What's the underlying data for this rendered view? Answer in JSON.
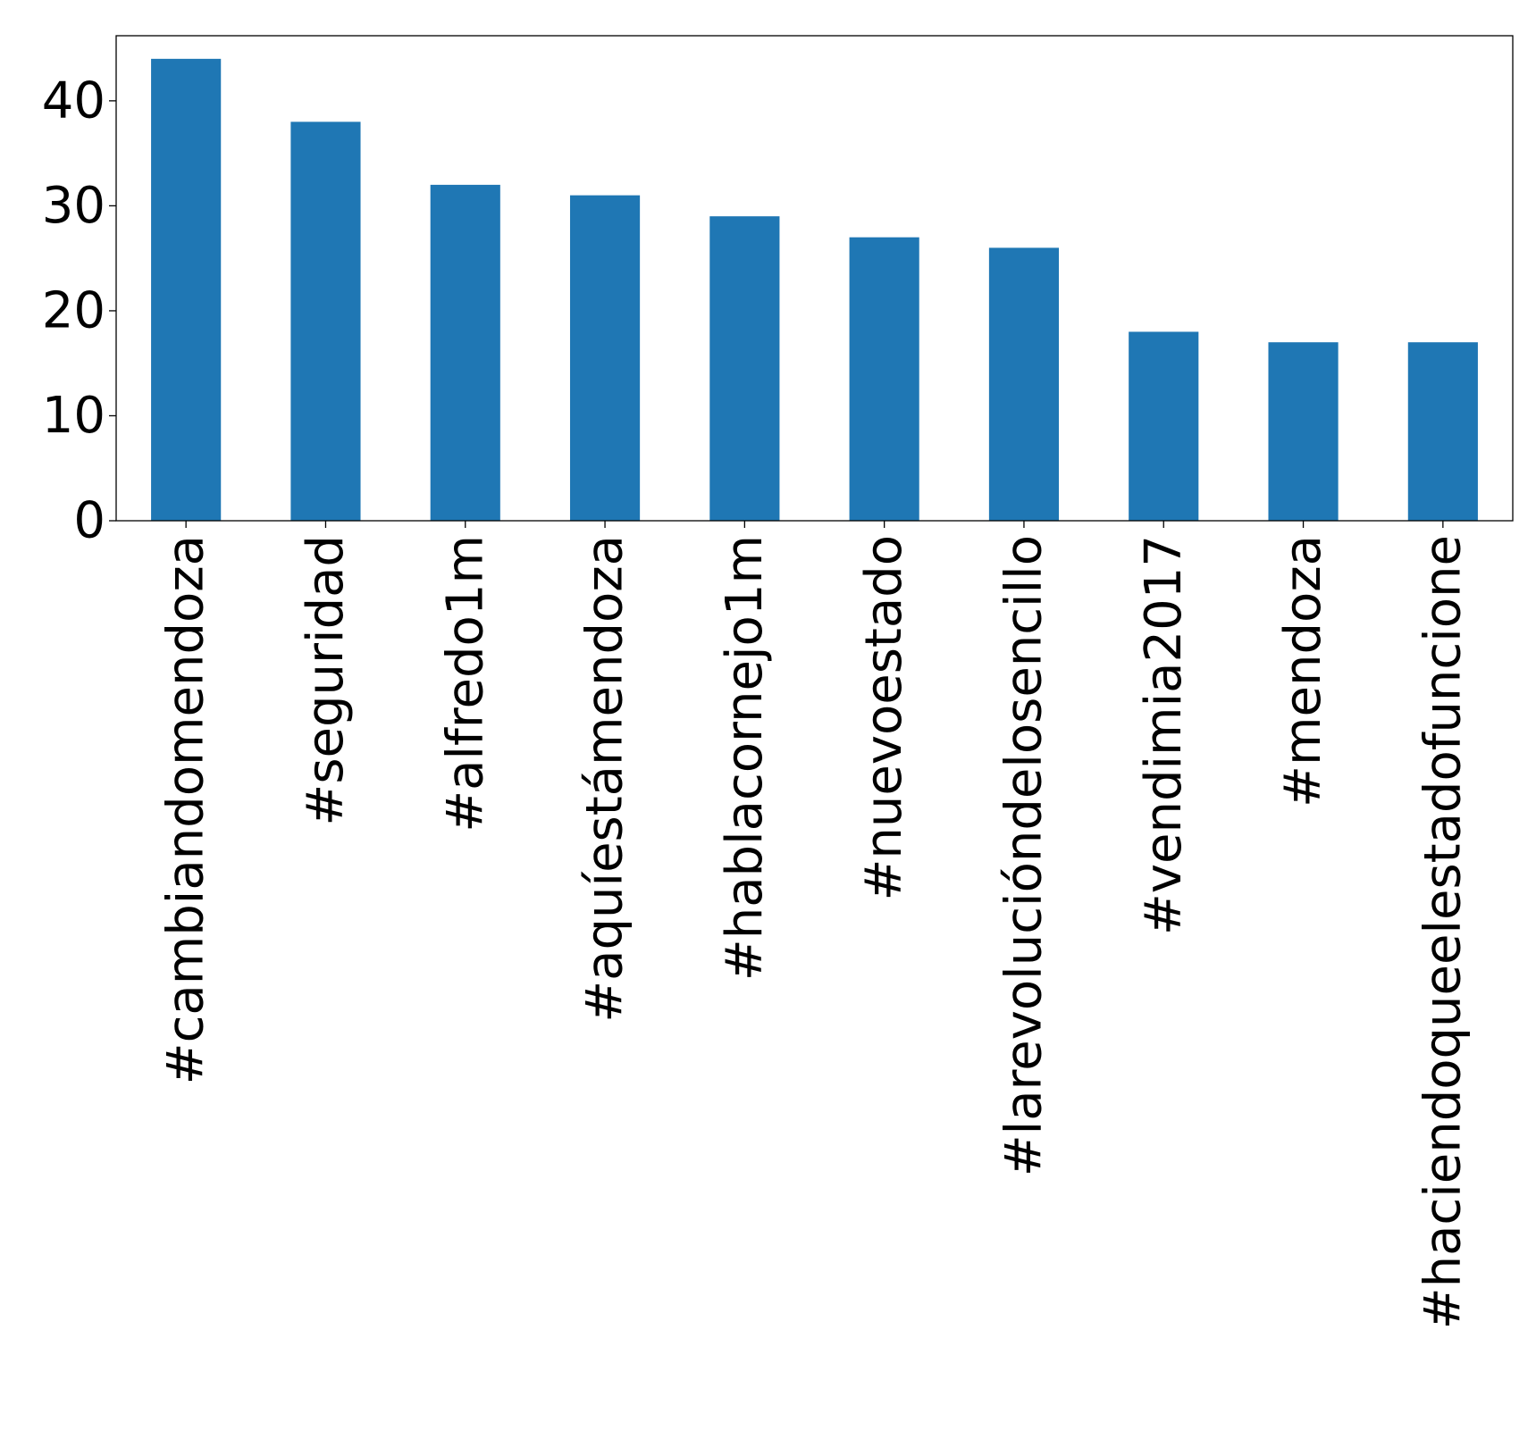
{
  "chart_data": {
    "type": "bar",
    "categories": [
      "#cambiandomendoza",
      "#seguridad",
      "#alfredo1m",
      "#aquíestámendoza",
      "#hablacornejo1m",
      "#nuevoestado",
      "#larevolucióndelosencillo",
      "#vendimia2017",
      "#mendoza",
      "#haciendoqueelestadofuncione"
    ],
    "values": [
      44,
      38,
      32,
      31,
      29,
      27,
      26,
      18,
      17,
      17
    ],
    "yticks": [
      0,
      10,
      20,
      30,
      40
    ],
    "ylim": [
      0,
      46.2
    ],
    "title": "",
    "xlabel": "",
    "ylabel": "",
    "grid": false,
    "bar_color": "#1f77b4"
  }
}
